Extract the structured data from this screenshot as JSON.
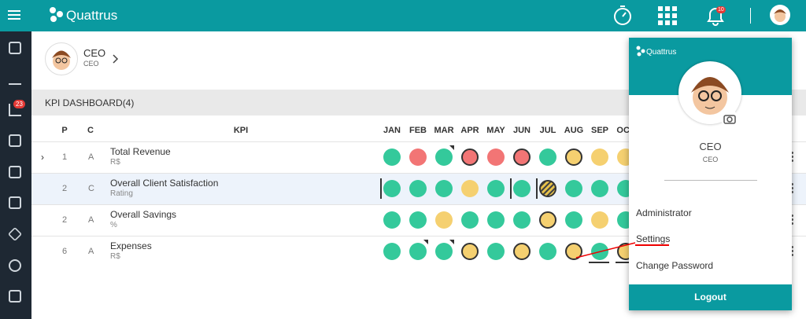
{
  "header": {
    "brand": "Quattrus",
    "notification_count": "10"
  },
  "sidebar": {
    "badge": "23"
  },
  "profile": {
    "name": "CEO",
    "role": "CEO"
  },
  "dashboard": {
    "title": "KPI DASHBOARD(4)",
    "columns": {
      "p": "P",
      "c": "C",
      "kpi": "KPI"
    },
    "months": [
      "JAN",
      "FEB",
      "MAR",
      "APR",
      "MAY",
      "JUN",
      "JUL",
      "AUG",
      "SEP",
      "OCT"
    ],
    "rows": [
      {
        "p": "1",
        "c": "A",
        "name": "Total Revenue",
        "unit": "R$",
        "status": [
          "green",
          "red",
          "green-flag",
          "red-outlined",
          "red",
          "red-outlined",
          "green",
          "yellow-outlined",
          "yellow",
          "yellow"
        ]
      },
      {
        "p": "2",
        "c": "C",
        "name": "Overall Client Satisfaction",
        "unit": "Rating",
        "status": [
          "green-bar",
          "green",
          "green",
          "yellow",
          "green",
          "green-bar",
          "hatched-outlined-bar",
          "green",
          "green",
          "green"
        ]
      },
      {
        "p": "2",
        "c": "A",
        "name": "Overall Savings",
        "unit": "%",
        "status": [
          "green",
          "green",
          "yellow",
          "green",
          "green",
          "green",
          "yellow-outlined",
          "green",
          "yellow",
          "green"
        ]
      },
      {
        "p": "6",
        "c": "A",
        "name": "Expenses",
        "unit": "R$",
        "status": [
          "green",
          "green-flag",
          "green-flag",
          "yellow-outlined",
          "green",
          "yellow-outlined",
          "green",
          "yellow-outlined",
          "green",
          "yellow-outlined"
        ]
      }
    ]
  },
  "dropdown": {
    "brand": "Quattrus",
    "name": "CEO",
    "role": "CEO",
    "items": [
      "Administrator",
      "Settings",
      "Change Password"
    ],
    "logout": "Logout"
  }
}
